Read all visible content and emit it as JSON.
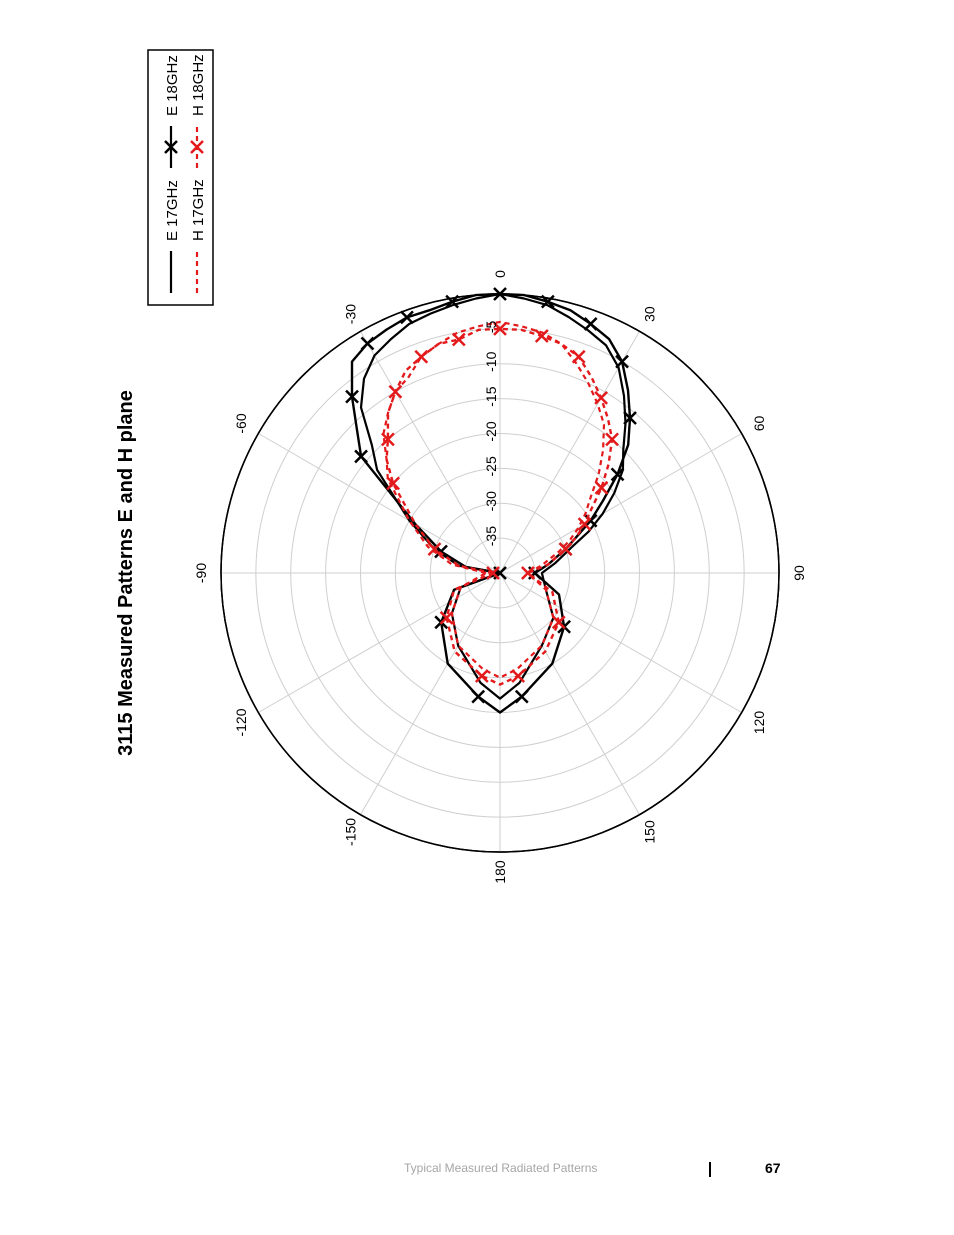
{
  "chart_data": {
    "type": "polar",
    "title": "3115 Measured Patterns E and H plane",
    "angular_ticks": [
      "0",
      "30",
      "60",
      "90",
      "120",
      "150",
      "180",
      "-150",
      "-120",
      "-90",
      "-60",
      "-30"
    ],
    "angular_values": [
      0,
      30,
      60,
      90,
      120,
      150,
      180,
      -150,
      -120,
      -90,
      -60,
      -30
    ],
    "radial_ticks": [
      "-5",
      "-10",
      "-15",
      "-20",
      "-25",
      "-30",
      "-35"
    ],
    "radial_values": [
      -5,
      -10,
      -15,
      -20,
      -25,
      -30,
      -35
    ],
    "rlim": [
      -40,
      0
    ],
    "grid": true,
    "legend_position": "top-right",
    "series": [
      {
        "name": "E 17GHz",
        "color": "#000000",
        "style": "solid",
        "marker": "none",
        "theta": [
          -90,
          -80,
          -70,
          -60,
          -50,
          -45,
          -40,
          -35,
          -30,
          -25,
          -20,
          -15,
          -10,
          -5,
          0,
          5,
          10,
          15,
          20,
          25,
          30,
          35,
          40,
          45,
          50,
          55,
          60,
          65,
          70,
          80,
          90,
          110,
          130,
          150,
          170,
          180,
          -170,
          -150,
          -130,
          -110
        ],
        "r": [
          -40,
          -34,
          -30,
          -25,
          -17,
          -14,
          -9,
          -6,
          -4,
          -3,
          -2,
          -1.5,
          -1,
          -0.5,
          0,
          -0.5,
          -1,
          -2,
          -3,
          -4,
          -6,
          -9,
          -12,
          -15,
          -17,
          -20,
          -23,
          -26,
          -29,
          -32,
          -34,
          -33,
          -30,
          -28,
          -24,
          -22,
          -24,
          -28,
          -31,
          -34
        ]
      },
      {
        "name": "E 18GHz",
        "color": "#000000",
        "style": "solid",
        "marker": "x",
        "theta": [
          -90,
          -80,
          -70,
          -60,
          -50,
          -45,
          -40,
          -35,
          -30,
          -25,
          -20,
          -15,
          -10,
          -5,
          0,
          5,
          10,
          15,
          20,
          25,
          30,
          35,
          40,
          45,
          50,
          55,
          60,
          65,
          70,
          80,
          90,
          110,
          130,
          150,
          170,
          180,
          -170,
          -150,
          -130,
          -110
        ],
        "r": [
          -40,
          -35,
          -31,
          -26,
          -14,
          -11,
          -7,
          -3,
          -2,
          -1.5,
          -1,
          -1,
          -0.5,
          0,
          0,
          0,
          -0.5,
          -1,
          -2,
          -3,
          -5,
          -8,
          -11,
          -14,
          -18,
          -22,
          -25,
          -28,
          -30,
          -33,
          -35,
          -31,
          -28,
          -25,
          -22,
          -20,
          -22,
          -25,
          -29,
          -33
        ]
      },
      {
        "name": "H 17GHz",
        "color": "#e31a1c",
        "style": "dotted",
        "marker": "none",
        "theta": [
          -90,
          -80,
          -70,
          -60,
          -50,
          -45,
          -40,
          -35,
          -30,
          -25,
          -20,
          -15,
          -10,
          -5,
          0,
          5,
          10,
          15,
          20,
          25,
          30,
          35,
          40,
          45,
          50,
          55,
          60,
          65,
          70,
          80,
          90,
          110,
          130,
          150,
          170,
          180,
          -170,
          -150,
          -130,
          -110
        ],
        "r": [
          -38,
          -33,
          -29,
          -25,
          -19,
          -17,
          -14,
          -12,
          -10,
          -9,
          -7,
          -6,
          -5,
          -4.5,
          -4,
          -4.5,
          -5,
          -6,
          -8,
          -10,
          -12,
          -14,
          -17,
          -20,
          -23,
          -25,
          -27,
          -29,
          -31,
          -34,
          -36,
          -33,
          -30,
          -28,
          -26,
          -25,
          -26,
          -28,
          -31,
          -34
        ]
      },
      {
        "name": "H 18GHz",
        "color": "#e31a1c",
        "style": "dotted",
        "marker": "x",
        "theta": [
          -90,
          -80,
          -70,
          -60,
          -50,
          -45,
          -40,
          -35,
          -30,
          -25,
          -20,
          -15,
          -10,
          -5,
          0,
          5,
          10,
          15,
          20,
          25,
          30,
          35,
          40,
          45,
          50,
          55,
          60,
          65,
          70,
          80,
          90,
          110,
          130,
          150,
          170,
          180,
          -170,
          -150,
          -130,
          -110
        ],
        "r": [
          -39,
          -34,
          -30,
          -26,
          -20,
          -17,
          -15,
          -12,
          -10,
          -8,
          -7,
          -6,
          -6,
          -5,
          -5,
          -5,
          -5.5,
          -6,
          -7,
          -9,
          -11,
          -13,
          -15,
          -18,
          -21,
          -24,
          -26,
          -28,
          -30,
          -33,
          -36,
          -32,
          -29,
          -27,
          -25,
          -24,
          -25,
          -27,
          -30,
          -33
        ]
      }
    ]
  },
  "footer": {
    "section_title": "Typical Measured Radiated Patterns",
    "page_number": "67"
  }
}
